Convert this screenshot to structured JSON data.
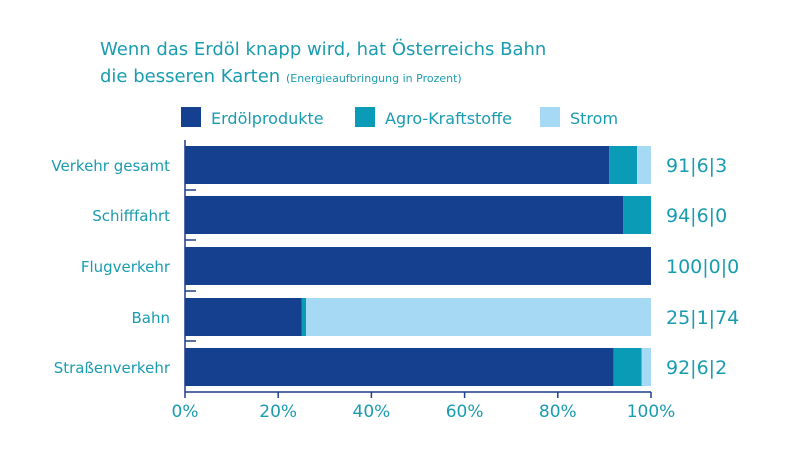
{
  "title": {
    "line1": "Wenn das Erdöl knapp wird, hat Österreichs Bahn",
    "line2": "die besseren Karten",
    "note": "(Energieaufbringung in Prozent)"
  },
  "colors": {
    "Erdölprodukte": "#15408f",
    "Agro-Kraftstoffe": "#0a9bb7",
    "Strom": "#a6d9f3",
    "text": "#1a9cb0",
    "axis": "#1e3f8a"
  },
  "chart_data": {
    "type": "bar",
    "orientation": "horizontal",
    "stacked": true,
    "categories": [
      "Verkehr gesamt",
      "Schifffahrt",
      "Flugverkehr",
      "Bahn",
      "Straßenverkehr"
    ],
    "series": [
      {
        "name": "Erdölprodukte",
        "values": [
          91,
          94,
          100,
          25,
          92
        ]
      },
      {
        "name": "Agro-Kraftstoffe",
        "values": [
          6,
          6,
          0,
          1,
          6
        ]
      },
      {
        "name": "Strom",
        "values": [
          3,
          0,
          0,
          74,
          2
        ]
      }
    ],
    "value_labels": [
      "91|6|3",
      "94|6|0",
      "100|0|0",
      "25|1|74",
      "92|6|2"
    ],
    "xlim": [
      0,
      100
    ],
    "x_ticks": [
      "0%",
      "20%",
      "40%",
      "60%",
      "80%",
      "100%"
    ],
    "legend": "top",
    "grid": false
  }
}
